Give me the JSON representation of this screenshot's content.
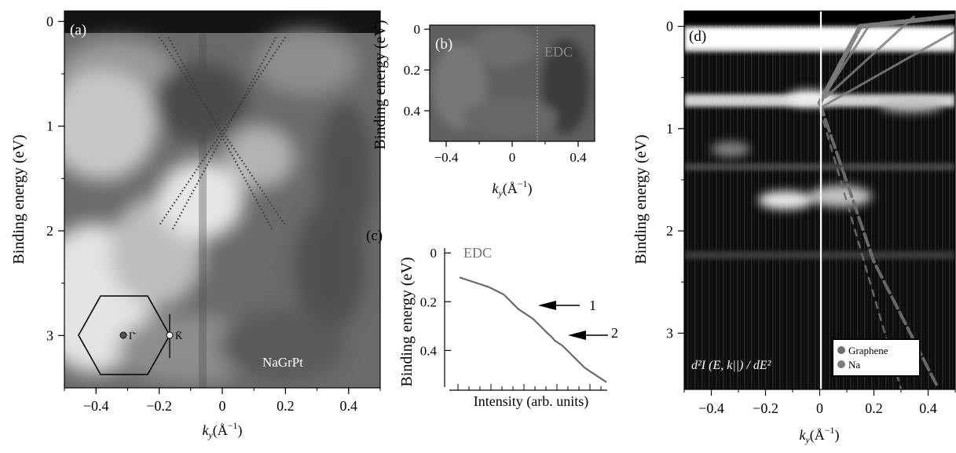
{
  "panels": {
    "a": {
      "label": "(a)",
      "ylabel": "Binding energy (eV)",
      "xlabel_k": "k",
      "xlabel_sub": "y",
      "xlabel_unit": "(Å",
      "xlabel_exp": "−1",
      "xlabel_close": ")",
      "sample_label": "NaGrPt",
      "gamma_label": "Γ̄",
      "k_label": "K̄",
      "y_ticks": [
        "0",
        "1",
        "2",
        "3"
      ],
      "x_ticks": [
        "−0.4",
        "−0.2",
        "0",
        "0.2",
        "0.4"
      ]
    },
    "b": {
      "label": "(b)",
      "ylabel": "Binding energy (eV)",
      "xlabel_k": "k",
      "xlabel_sub": "y",
      "xlabel_unit": "(Å",
      "xlabel_exp": "−1",
      "xlabel_close": ")",
      "edc_label": "EDC",
      "y_ticks": [
        "0",
        "0.2",
        "0.4"
      ],
      "x_ticks": [
        "−0.4",
        "0",
        "0.4"
      ]
    },
    "c": {
      "label": "(c)",
      "ylabel": "Binding energy (eV)",
      "xlabel": "Intensity (arb. units)",
      "edc_label": "EDC",
      "arrow1_label": "1",
      "arrow2_label": "2",
      "y_ticks": [
        "0",
        "0.2",
        "0.4"
      ]
    },
    "d": {
      "label": "(d)",
      "ylabel": "Binding energy (eV)",
      "xlabel_k": "k",
      "xlabel_sub": "y",
      "xlabel_unit": "(Å",
      "xlabel_exp": "−1",
      "xlabel_close": ")",
      "formula": "d²I (E, k||) / dE²",
      "legend": [
        {
          "name": "Graphene",
          "color": "#6e6e6e"
        },
        {
          "name": "Na",
          "color": "#7e7e7e"
        }
      ],
      "y_ticks": [
        "0",
        "1",
        "2",
        "3"
      ],
      "x_ticks": [
        "−0.4",
        "−0.2",
        "0",
        "0.2",
        "0.4"
      ]
    }
  },
  "chart_data": [
    {
      "type": "heatmap",
      "panel": "a",
      "xlabel": "ky (Å−1)",
      "ylabel": "Binding energy (eV)",
      "xlim": [
        -0.5,
        0.5
      ],
      "ylim": [
        3.5,
        -0.1
      ],
      "overlay_lines": [
        {
          "x": [
            -0.2,
            0.2
          ],
          "y": [
            0.15,
            1.95
          ]
        },
        {
          "x": [
            -0.17,
            0.16
          ],
          "y": [
            0.15,
            2.0
          ]
        },
        {
          "x": [
            0.2,
            -0.2
          ],
          "y": [
            0.15,
            1.95
          ]
        },
        {
          "x": [
            0.17,
            -0.16
          ],
          "y": [
            0.15,
            2.0
          ]
        }
      ],
      "brillouin_zone": {
        "gamma_x": -0.28,
        "k_x": -0.11,
        "energy": 3.0
      }
    },
    {
      "type": "heatmap",
      "panel": "b",
      "xlabel": "ky (Å−1)",
      "ylabel": "Binding energy (eV)",
      "xlim": [
        -0.5,
        0.5
      ],
      "ylim": [
        0.55,
        -0.02
      ],
      "edc_cut_x": 0.15
    },
    {
      "type": "line",
      "panel": "c",
      "xlabel": "Intensity (arb. units)",
      "ylabel": "Binding energy (eV)",
      "ylim": [
        0.55,
        -0.02
      ],
      "series": [
        {
          "name": "EDC",
          "x": [
            0.0,
            0.1,
            0.2,
            0.3,
            0.35,
            0.4,
            0.45,
            0.5,
            0.55,
            0.6,
            0.62,
            0.65,
            0.7,
            0.75,
            0.8,
            0.85,
            0.9,
            0.95,
            1.0
          ],
          "y": [
            0.1,
            0.12,
            0.14,
            0.17,
            0.2,
            0.23,
            0.25,
            0.27,
            0.3,
            0.33,
            0.34,
            0.36,
            0.38,
            0.41,
            0.44,
            0.47,
            0.49,
            0.51,
            0.53
          ]
        }
      ],
      "annotations": [
        {
          "label": "1",
          "y": 0.25
        },
        {
          "label": "2",
          "y": 0.4
        }
      ]
    },
    {
      "type": "heatmap",
      "panel": "d",
      "xlabel": "ky (Å−1)",
      "ylabel": "Binding energy (eV)",
      "xlim": [
        -0.5,
        0.5
      ],
      "ylim": [
        3.55,
        -0.15
      ],
      "bands": [
        {
          "name": "Graphene",
          "x": [
            0.0,
            0.2,
            0.43
          ],
          "y": [
            0.75,
            2.3,
            3.5
          ]
        },
        {
          "name": "Na",
          "x": [
            0.0,
            0.15,
            0.5
          ],
          "y": [
            0.75,
            0.0,
            -0.1
          ]
        }
      ]
    }
  ]
}
